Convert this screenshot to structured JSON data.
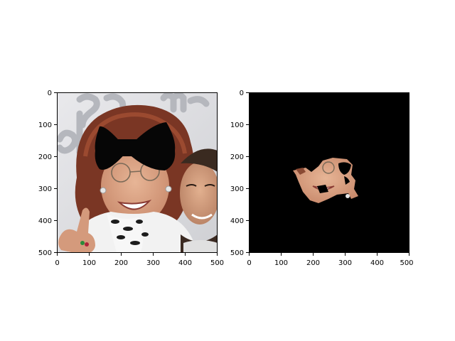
{
  "figure": {
    "background": "#ffffff",
    "panels": [
      {
        "id": "left",
        "image": "photo-with-black-bow-over-eyes",
        "xlim": [
          0,
          500
        ],
        "ylim_top": 0,
        "ylim_bottom": 500,
        "x_ticks": [
          "0",
          "100",
          "200",
          "300",
          "400",
          "500"
        ],
        "y_ticks": [
          "0",
          "100",
          "200",
          "300",
          "400",
          "500"
        ]
      },
      {
        "id": "right",
        "image": "masked-face-segmentation",
        "xlim": [
          0,
          500
        ],
        "ylim_top": 0,
        "ylim_bottom": 500,
        "x_ticks": [
          "0",
          "100",
          "200",
          "300",
          "400",
          "500"
        ],
        "y_ticks": [
          "0",
          "100",
          "200",
          "300",
          "400",
          "500"
        ]
      }
    ]
  }
}
